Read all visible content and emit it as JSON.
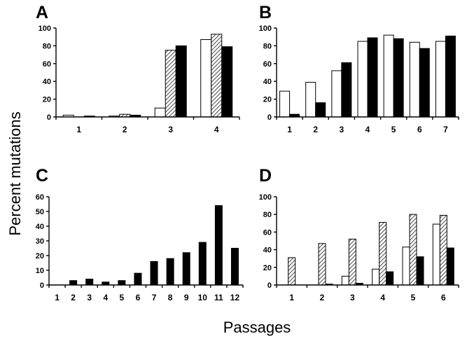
{
  "ylabel": "Percent mutations",
  "xlabel": "Passages",
  "chart_data": [
    {
      "panel": "A",
      "type": "bar",
      "ylim": [
        0,
        100
      ],
      "yticks": [
        0,
        20,
        40,
        60,
        80,
        100
      ],
      "categories": [
        "1",
        "2",
        "3",
        "4"
      ],
      "series": [
        {
          "style": "open",
          "values": [
            2,
            1,
            10,
            87
          ]
        },
        {
          "style": "hatched",
          "values": [
            0,
            3,
            75,
            93
          ]
        },
        {
          "style": "solid",
          "values": [
            1,
            2,
            80,
            79
          ]
        }
      ]
    },
    {
      "panel": "B",
      "type": "bar",
      "ylim": [
        0,
        100
      ],
      "yticks": [
        0,
        20,
        40,
        60,
        80,
        100
      ],
      "categories": [
        "1",
        "2",
        "3",
        "4",
        "5",
        "6",
        "7"
      ],
      "series": [
        {
          "style": "open",
          "values": [
            29,
            39,
            52,
            85,
            92,
            84,
            85
          ]
        },
        {
          "style": "solid",
          "values": [
            3,
            16,
            61,
            89,
            88,
            77,
            91
          ]
        }
      ]
    },
    {
      "panel": "C",
      "type": "bar",
      "ylim": [
        0,
        60
      ],
      "yticks": [
        0,
        10,
        20,
        30,
        40,
        50,
        60
      ],
      "categories": [
        "1",
        "2",
        "3",
        "4",
        "5",
        "6",
        "7",
        "8",
        "9",
        "10",
        "11",
        "12"
      ],
      "series": [
        {
          "style": "solid",
          "values": [
            0,
            3,
            4,
            2,
            3,
            8,
            16,
            18,
            22,
            29,
            54,
            25
          ]
        }
      ]
    },
    {
      "panel": "D",
      "type": "bar",
      "ylim": [
        0,
        100
      ],
      "yticks": [
        0,
        20,
        40,
        60,
        80,
        100
      ],
      "categories": [
        "1",
        "2",
        "3",
        "4",
        "5",
        "6"
      ],
      "series": [
        {
          "style": "open",
          "values": [
            0,
            0,
            10,
            18,
            43,
            69
          ]
        },
        {
          "style": "hatched",
          "values": [
            31,
            47,
            52,
            71,
            80,
            79
          ]
        },
        {
          "style": "solid",
          "values": [
            0,
            1,
            2,
            15,
            32,
            42
          ]
        }
      ]
    }
  ]
}
